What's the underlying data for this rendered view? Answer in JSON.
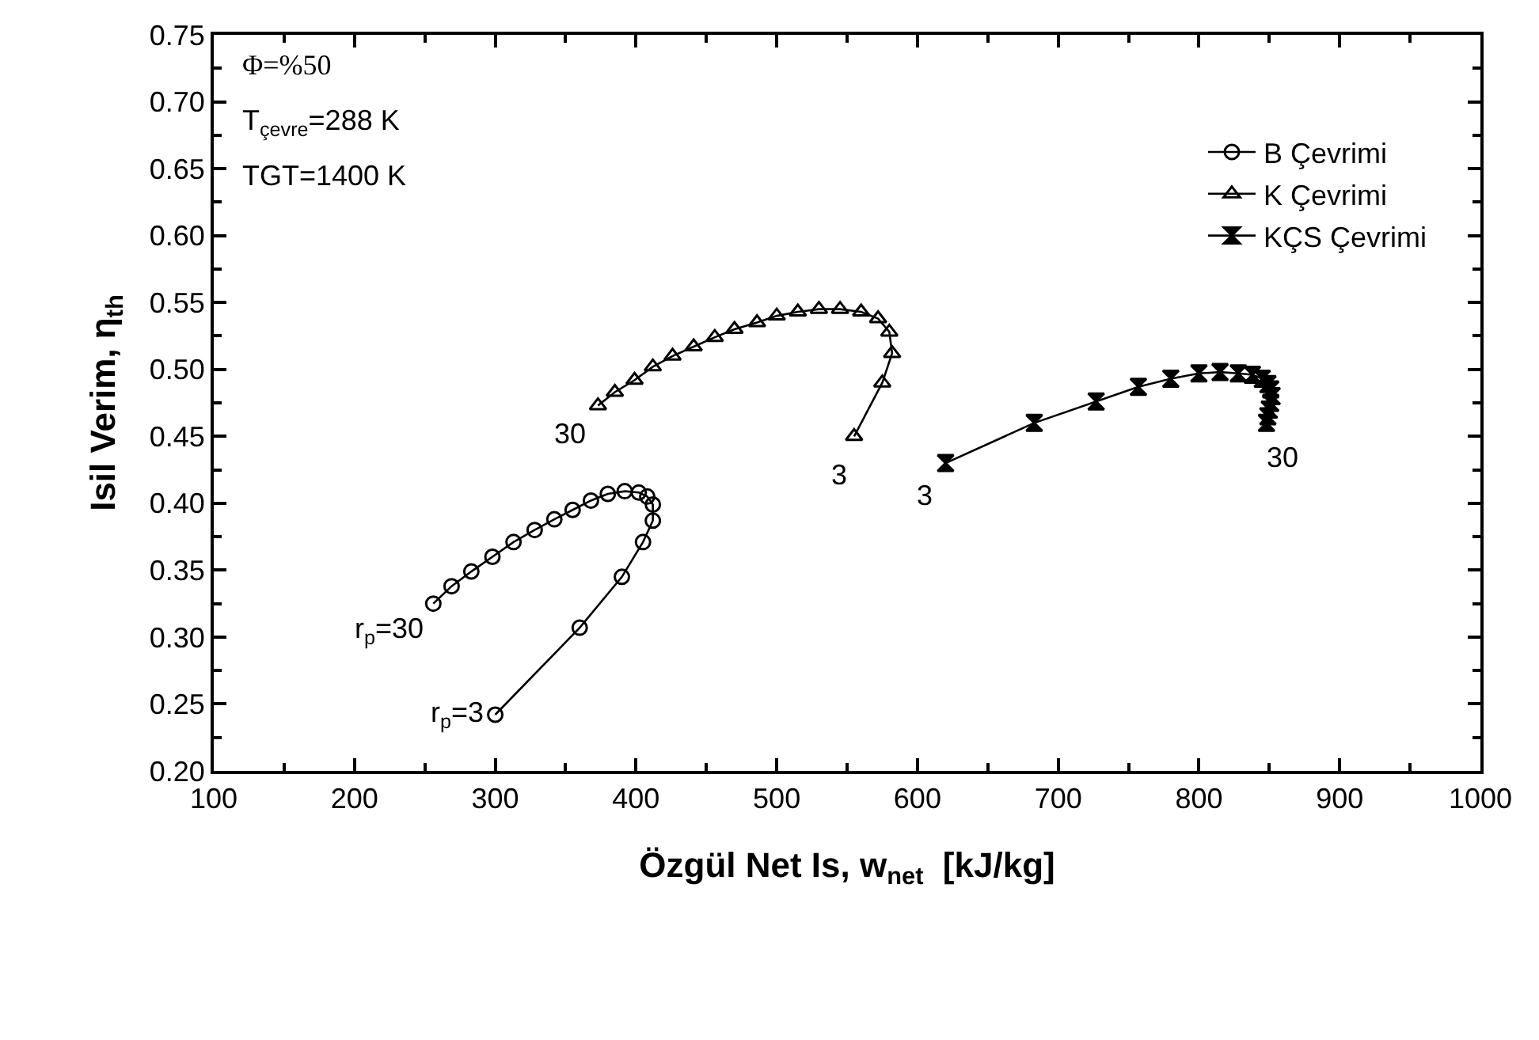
{
  "chart_data": {
    "type": "line",
    "xlabel": "Özgül Net Is, w$_{net}$  [kJ/kg]",
    "ylabel": "Isil Verim, η$_{th}$",
    "xlim": [
      100,
      1000
    ],
    "xticks": [
      100,
      200,
      300,
      400,
      500,
      600,
      700,
      800,
      900,
      1000
    ],
    "ylim": [
      0.2,
      0.75
    ],
    "yticks": [
      {
        "value": 0.2,
        "label": "0.20"
      },
      {
        "value": 0.25,
        "label": "0.25"
      },
      {
        "value": 0.3,
        "label": "0.30"
      },
      {
        "value": 0.35,
        "label": "0.35"
      },
      {
        "value": 0.4,
        "label": "0.40"
      },
      {
        "value": 0.45,
        "label": "0.45"
      },
      {
        "value": 0.5,
        "label": "0.50"
      },
      {
        "value": 0.55,
        "label": "0.55"
      },
      {
        "value": 0.6,
        "label": "0.60"
      },
      {
        "value": 0.65,
        "label": "0.65"
      },
      {
        "value": 0.7,
        "label": "0.70"
      },
      {
        "value": 0.75,
        "label": "0.75"
      }
    ],
    "legend": "top right",
    "line_style": "solid",
    "series": [
      {
        "name": "B Çevrimi",
        "color": "#000000",
        "marker": "circle",
        "x": [
          300,
          360,
          390,
          405,
          412,
          412,
          408,
          402,
          392,
          380,
          368,
          355,
          342,
          328,
          313,
          298,
          283,
          269,
          256
        ],
        "values": [
          0.242,
          0.307,
          0.345,
          0.371,
          0.387,
          0.399,
          0.405,
          0.408,
          0.409,
          0.407,
          0.402,
          0.395,
          0.388,
          0.38,
          0.371,
          0.36,
          0.349,
          0.338,
          0.325
        ]
      },
      {
        "name": "K Çevrimi",
        "color": "#000000",
        "marker": "triangle",
        "x": [
          555,
          575,
          582,
          580,
          572,
          560,
          545,
          530,
          515,
          500,
          486,
          470,
          456,
          441,
          426,
          412,
          399,
          385,
          373
        ],
        "values": [
          0.45,
          0.49,
          0.512,
          0.528,
          0.538,
          0.543,
          0.545,
          0.545,
          0.543,
          0.54,
          0.535,
          0.53,
          0.524,
          0.517,
          0.51,
          0.502,
          0.492,
          0.483,
          0.473
        ]
      },
      {
        "name": "KÇS Çevrimi",
        "color": "#000000",
        "marker": "diamond",
        "x": [
          620,
          683,
          727,
          757,
          780,
          800,
          815,
          828,
          838,
          845,
          849,
          851,
          852,
          851,
          850,
          849,
          848
        ],
        "values": [
          0.43,
          0.46,
          0.476,
          0.487,
          0.493,
          0.497,
          0.498,
          0.497,
          0.496,
          0.493,
          0.489,
          0.485,
          0.48,
          0.475,
          0.47,
          0.465,
          0.46
        ]
      }
    ],
    "annotations": [
      "Φ=%50",
      "T$_{çevre}$=288 K",
      "TGT=1400 K",
      {
        "text": "r$_{p}$=30",
        "x": 256,
        "y": 0.325
      },
      {
        "text": "r$_{p}$=3",
        "x": 300,
        "y": 0.242
      },
      {
        "text": "30",
        "x": 373,
        "y": 0.473
      },
      {
        "text": "3",
        "x": 555,
        "y": 0.45
      },
      {
        "text": "3",
        "x": 620,
        "y": 0.43
      },
      {
        "text": "30",
        "x": 848,
        "y": 0.46
      }
    ]
  }
}
